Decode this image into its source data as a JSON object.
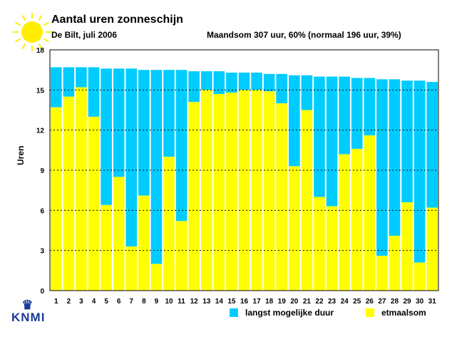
{
  "title": "Aantal uren zonneschijn",
  "subtitle": "De Bilt, juli 2006",
  "summary": "Maandsom 307 uur, 60% (normaal 196 uur, 39%)",
  "logo_text": "KNMI",
  "chart_data": {
    "type": "bar",
    "ylabel": "Uren",
    "ylim": [
      0,
      18
    ],
    "yticks": [
      0,
      3,
      6,
      9,
      12,
      15,
      18
    ],
    "grid": true,
    "legend_placement": "bottom-right",
    "categories": [
      "1",
      "2",
      "3",
      "4",
      "5",
      "6",
      "7",
      "8",
      "9",
      "10",
      "11",
      "12",
      "13",
      "14",
      "15",
      "16",
      "17",
      "18",
      "19",
      "20",
      "21",
      "22",
      "23",
      "24",
      "25",
      "26",
      "27",
      "28",
      "29",
      "30",
      "31"
    ],
    "series": [
      {
        "name": "langst mogelijke duur",
        "color": "#00ccff",
        "values": [
          16.7,
          16.7,
          16.7,
          16.7,
          16.6,
          16.6,
          16.6,
          16.5,
          16.5,
          16.5,
          16.5,
          16.4,
          16.4,
          16.4,
          16.3,
          16.3,
          16.3,
          16.2,
          16.2,
          16.1,
          16.1,
          16.0,
          16.0,
          16.0,
          15.9,
          15.9,
          15.8,
          15.8,
          15.7,
          15.7,
          15.6
        ]
      },
      {
        "name": "etmaalsom",
        "color": "#ffff00",
        "values": [
          13.7,
          14.5,
          15.2,
          13.0,
          6.4,
          8.5,
          3.3,
          7.1,
          2.0,
          10.0,
          5.2,
          14.1,
          15.0,
          14.7,
          14.8,
          15.0,
          15.0,
          14.9,
          14.0,
          9.3,
          13.5,
          7.0,
          6.3,
          10.2,
          10.6,
          11.6,
          2.6,
          4.1,
          6.6,
          2.1,
          6.2
        ]
      }
    ]
  }
}
